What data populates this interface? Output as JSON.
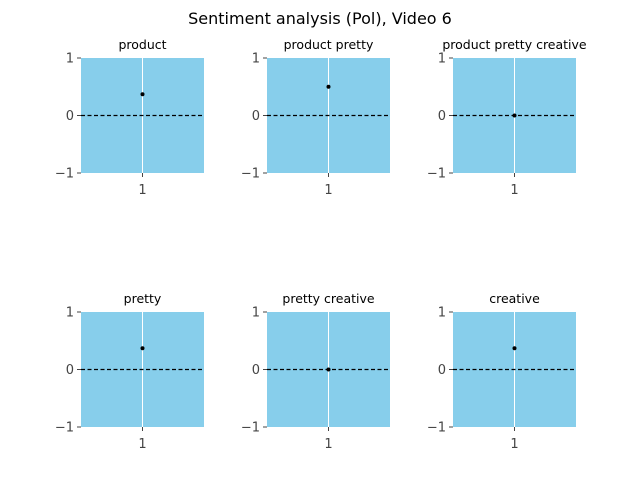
{
  "colors": {
    "panel_bg": "#87ceeb",
    "grid": "#ffffff",
    "zero_line": "#000000",
    "point": "#000000",
    "tick_text": "#444444"
  },
  "chart_data": {
    "suptitle": "Sentiment analysis (Pol), Video 6",
    "grid": true,
    "panels": [
      {
        "type": "scatter",
        "title": "product",
        "x": [
          1
        ],
        "y": [
          0.37
        ],
        "ylim": [
          -1,
          1
        ],
        "yticks": [
          "1",
          "0",
          "−1"
        ],
        "xticks": [
          "1"
        ]
      },
      {
        "type": "scatter",
        "title": "product pretty",
        "x": [
          1
        ],
        "y": [
          0.5
        ],
        "ylim": [
          -1,
          1
        ],
        "yticks": [
          "1",
          "0",
          "−1"
        ],
        "xticks": [
          "1"
        ]
      },
      {
        "type": "scatter",
        "title": "product pretty creative",
        "x": [
          1
        ],
        "y": [
          0.0
        ],
        "ylim": [
          -1,
          1
        ],
        "yticks": [
          "1",
          "0",
          "−1"
        ],
        "xticks": [
          "1"
        ]
      },
      {
        "type": "scatter",
        "title": "pretty",
        "x": [
          1
        ],
        "y": [
          0.37
        ],
        "ylim": [
          -1,
          1
        ],
        "yticks": [
          "1",
          "0",
          "−1"
        ],
        "xticks": [
          "1"
        ]
      },
      {
        "type": "scatter",
        "title": "pretty creative",
        "x": [
          1
        ],
        "y": [
          0.0
        ],
        "ylim": [
          -1,
          1
        ],
        "yticks": [
          "1",
          "0",
          "−1"
        ],
        "xticks": [
          "1"
        ]
      },
      {
        "type": "scatter",
        "title": "creative",
        "x": [
          1
        ],
        "y": [
          0.37
        ],
        "ylim": [
          -1,
          1
        ],
        "yticks": [
          "1",
          "0",
          "−1"
        ],
        "xticks": [
          "1"
        ]
      }
    ]
  }
}
